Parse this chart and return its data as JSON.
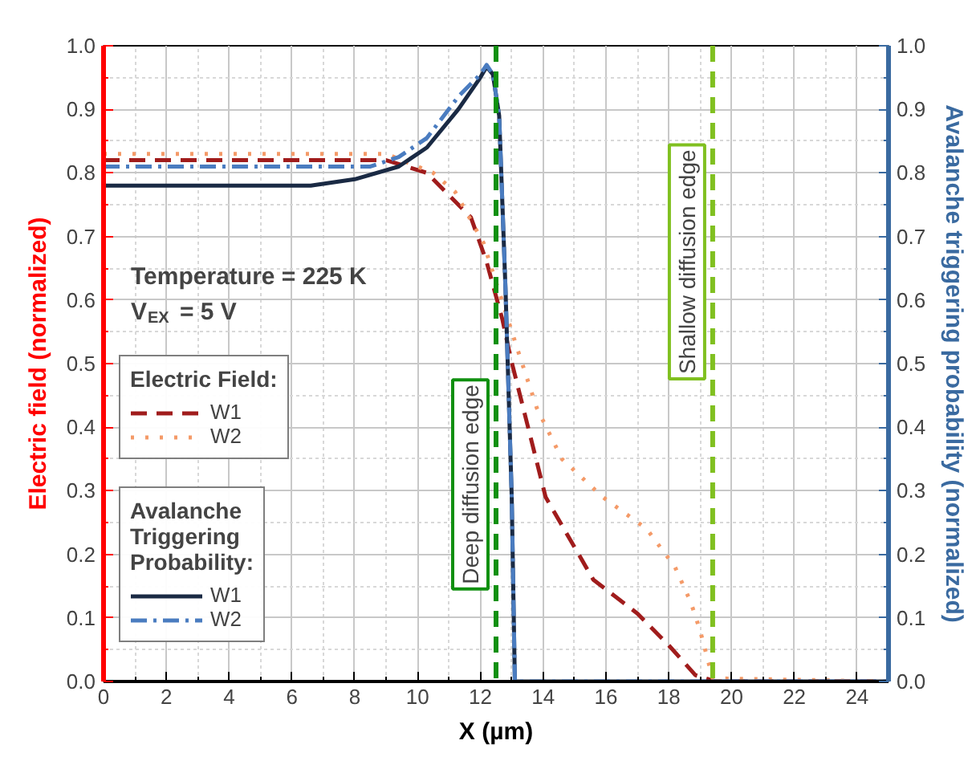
{
  "chart_data": {
    "type": "line",
    "xlabel": "X (µm)",
    "ylabel": "Electric field (normalized)",
    "y2label": "Avalanche triggering probability (normalized)",
    "xlim": [
      0,
      25
    ],
    "xticks": [
      0,
      2,
      4,
      6,
      8,
      10,
      12,
      14,
      16,
      18,
      20,
      22,
      24
    ],
    "ylim": [
      0,
      1
    ],
    "yticks": [
      {
        "value": 0,
        "label": "0.0"
      },
      {
        "value": 0.1,
        "label": "0.1"
      },
      {
        "value": 0.2,
        "label": "0.2"
      },
      {
        "value": 0.3,
        "label": "0.3"
      },
      {
        "value": 0.4,
        "label": "0.4"
      },
      {
        "value": 0.5,
        "label": "0.5"
      },
      {
        "value": 0.6,
        "label": "0.6"
      },
      {
        "value": 0.7,
        "label": "0.7"
      },
      {
        "value": 0.8,
        "label": "0.8"
      },
      {
        "value": 0.9,
        "label": "0.9"
      },
      {
        "value": 1,
        "label": "1.0"
      }
    ],
    "y2lim": [
      0,
      1
    ],
    "y2ticks": [
      {
        "value": 0,
        "label": "0.0"
      },
      {
        "value": 0.1,
        "label": "0.1"
      },
      {
        "value": 0.2,
        "label": "0.2"
      },
      {
        "value": 0.3,
        "label": "0.3"
      },
      {
        "value": 0.4,
        "label": "0.4"
      },
      {
        "value": 0.5,
        "label": "0.5"
      },
      {
        "value": 0.6,
        "label": "0.6"
      },
      {
        "value": 0.7,
        "label": "0.7"
      },
      {
        "value": 0.8,
        "label": "0.8"
      },
      {
        "value": 0.9,
        "label": "0.9"
      },
      {
        "value": 1,
        "label": "1.0"
      }
    ],
    "grid": true,
    "legend": "left",
    "annotations": [
      "Temperature = 225 K",
      "V$_{EX}$ = 5 V",
      "Electric Field:",
      "Avalanche Triggering Probability:"
    ],
    "series": [
      {
        "name": "W1",
        "color": "#a01c1c",
        "line_style": "dashed",
        "x": [
          0,
          9.0,
          10.3,
          11.7,
          12.2,
          12.7,
          12.96,
          14.08,
          15.6,
          17.0,
          18.0,
          18.85,
          19.5,
          25
        ],
        "values": [
          0.82,
          0.82,
          0.8,
          0.73,
          0.66,
          0.57,
          0.51,
          0.29,
          0.16,
          0.107,
          0.057,
          0.01,
          0,
          0
        ]
      },
      {
        "name": "W2",
        "color": "#f49a68",
        "line_style": "dotted",
        "x": [
          0,
          9.0,
          10.5,
          11.2,
          12.1,
          13.2,
          13.8,
          14.6,
          15.9,
          17.3,
          18.2,
          18.7,
          19.0,
          19.4,
          25
        ],
        "values": [
          0.83,
          0.83,
          0.8,
          0.77,
          0.69,
          0.52,
          0.43,
          0.35,
          0.29,
          0.24,
          0.18,
          0.125,
          0.08,
          0.005,
          0
        ]
      },
      {
        "name": "W1",
        "color": "#1a2a44",
        "line_style": "solid",
        "axis": "y2",
        "x": [
          0,
          6.6,
          8.0,
          9.4,
          10.3,
          11.3,
          12.0,
          12.2,
          12.4,
          12.6,
          12.8,
          13.0,
          13.1,
          25
        ],
        "values": [
          0.78,
          0.78,
          0.79,
          0.81,
          0.84,
          0.9,
          0.95,
          0.967,
          0.955,
          0.89,
          0.62,
          0.29,
          0,
          0
        ]
      },
      {
        "name": "W2",
        "color": "#4a7cc0",
        "line_style": "dashdot",
        "axis": "y2",
        "x": [
          0,
          8.5,
          9.4,
          10.3,
          11.3,
          12.0,
          12.2,
          12.4,
          12.6,
          12.8,
          13.0,
          13.1,
          25
        ],
        "values": [
          0.81,
          0.81,
          0.825,
          0.855,
          0.92,
          0.955,
          0.97,
          0.955,
          0.89,
          0.62,
          0.29,
          0,
          0
        ]
      }
    ],
    "ref_lines": [
      {
        "axis": "x",
        "value": 12.5,
        "label": "Deep diffusion edge",
        "color": "#109010",
        "line_style": "dashed"
      },
      {
        "axis": "x",
        "value": 19.4,
        "label": "Shallow diffusion edge",
        "color": "#80c020",
        "line_style": "dashed"
      }
    ]
  }
}
